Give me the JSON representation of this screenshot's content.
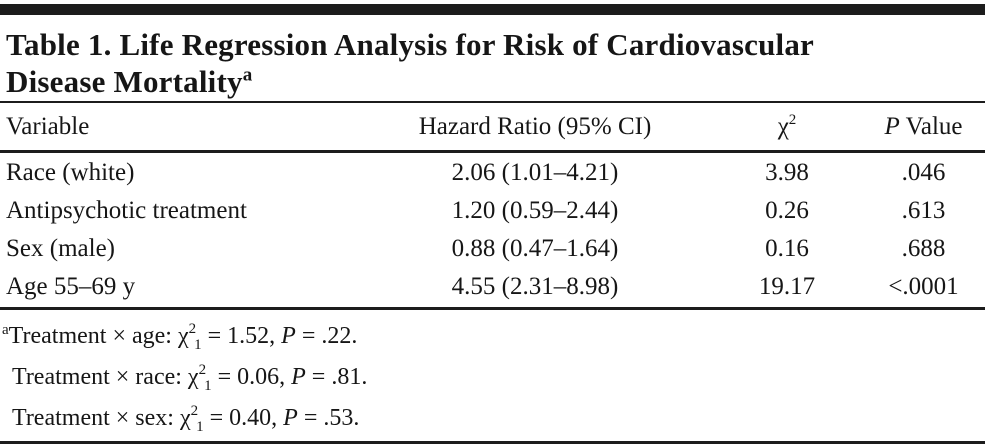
{
  "table": {
    "title_line1": "Table 1. Life Regression Analysis for Risk of Cardiovascular",
    "title_line2": "Disease Mortality",
    "title_superscript": "a",
    "columns": {
      "variable": "Variable",
      "hazard_ratio": "Hazard Ratio (95% CI)",
      "chi_base": "χ",
      "chi_sup": "2",
      "p_italic": "P",
      "p_rest": " Value"
    },
    "rows": [
      {
        "variable": "Race (white)",
        "hazard_ratio": "2.06 (1.01–4.21)",
        "chi2": "3.98",
        "p": ".046"
      },
      {
        "variable": "Antipsychotic treatment",
        "hazard_ratio": "1.20 (0.59–2.44)",
        "chi2": "0.26",
        "p": ".613"
      },
      {
        "variable": "Sex (male)",
        "hazard_ratio": "0.88 (0.47–1.64)",
        "chi2": "0.16",
        "p": ".688"
      },
      {
        "variable": "Age 55–69 y",
        "hazard_ratio": "4.55 (2.31–8.98)",
        "chi2": "19.17",
        "p": "<.0001"
      }
    ]
  },
  "footnotes": [
    {
      "marker": "a",
      "prefix": "Treatment × age: ",
      "chi": "χ",
      "chi_sup": "2",
      "chi_sub": "1",
      "mid": " = 1.52, ",
      "p": "P",
      "tail": " = .22."
    },
    {
      "marker": "",
      "prefix": "Treatment × race: ",
      "chi": "χ",
      "chi_sup": "2",
      "chi_sub": "1",
      "mid": " = 0.06, ",
      "p": "P",
      "tail": " = .81."
    },
    {
      "marker": "",
      "prefix": "Treatment × sex: ",
      "chi": "χ",
      "chi_sup": "2",
      "chi_sub": "1",
      "mid": " = 0.40, ",
      "p": "P",
      "tail": " = .53."
    }
  ],
  "colors": {
    "rule": "#1c1c1c",
    "text": "#161616",
    "background": "#ffffff"
  }
}
